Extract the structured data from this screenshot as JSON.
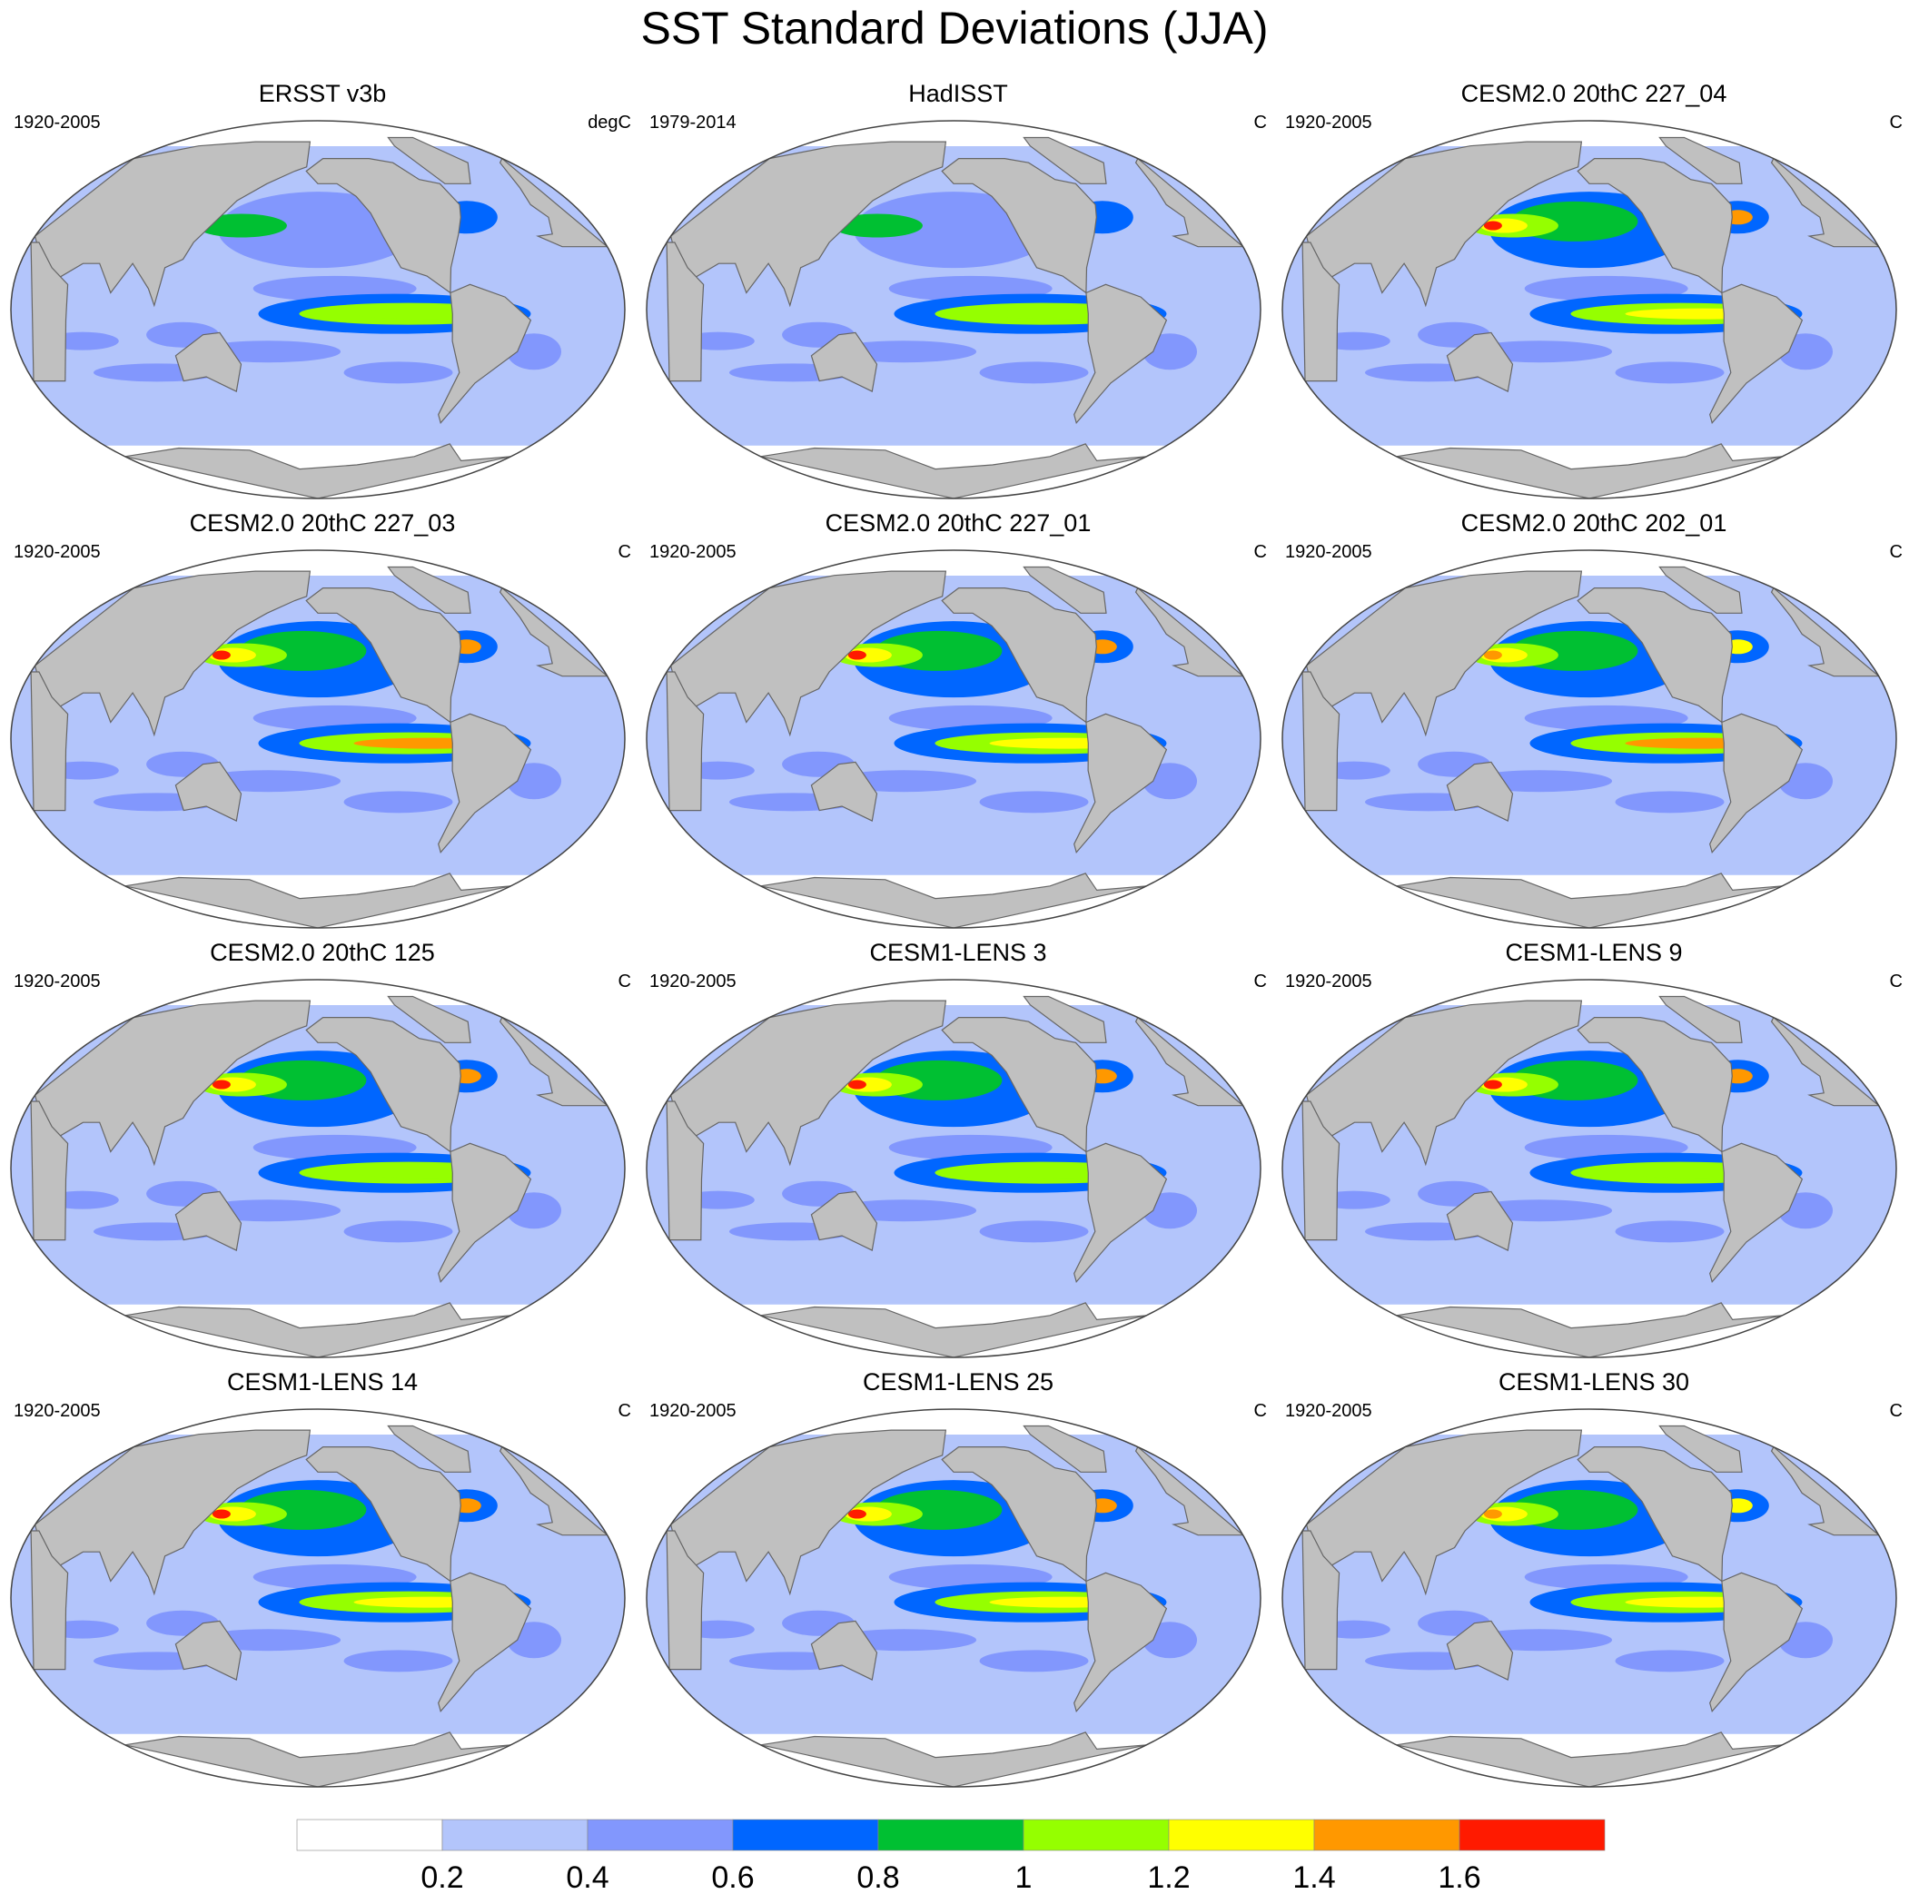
{
  "title": "SST Standard Deviations (JJA)",
  "panels": [
    {
      "title": "ERSST v3b",
      "period": "1920-2005",
      "unit": "degC",
      "enso_peak": 1.0,
      "kuroshio_peak": 0.9,
      "obs": true
    },
    {
      "title": "HadISST",
      "period": "1979-2014",
      "unit": "C",
      "enso_peak": 1.0,
      "kuroshio_peak": 0.8,
      "obs": true
    },
    {
      "title": "CESM2.0 20thC 227_04",
      "period": "1920-2005",
      "unit": "C",
      "enso_peak": 1.3,
      "kuroshio_peak": 1.6,
      "obs": false
    },
    {
      "title": "CESM2.0 20thC 227_03",
      "period": "1920-2005",
      "unit": "C",
      "enso_peak": 1.4,
      "kuroshio_peak": 1.6,
      "obs": false
    },
    {
      "title": "CESM2.0 20thC 227_01",
      "period": "1920-2005",
      "unit": "C",
      "enso_peak": 1.2,
      "kuroshio_peak": 1.6,
      "obs": false
    },
    {
      "title": "CESM2.0 20thC 202_01",
      "period": "1920-2005",
      "unit": "C",
      "enso_peak": 1.4,
      "kuroshio_peak": 1.4,
      "obs": false
    },
    {
      "title": "CESM2.0 20thC 125",
      "period": "1920-2005",
      "unit": "C",
      "enso_peak": 1.0,
      "kuroshio_peak": 1.6,
      "obs": false
    },
    {
      "title": "CESM1-LENS 3",
      "period": "1920-2005",
      "unit": "C",
      "enso_peak": 1.1,
      "kuroshio_peak": 1.6,
      "obs": false
    },
    {
      "title": "CESM1-LENS 9",
      "period": "1920-2005",
      "unit": "C",
      "enso_peak": 1.1,
      "kuroshio_peak": 1.6,
      "obs": false
    },
    {
      "title": "CESM1-LENS 14",
      "period": "1920-2005",
      "unit": "C",
      "enso_peak": 1.3,
      "kuroshio_peak": 1.6,
      "obs": false
    },
    {
      "title": "CESM1-LENS 25",
      "period": "1920-2005",
      "unit": "C",
      "enso_peak": 1.3,
      "kuroshio_peak": 1.6,
      "obs": false
    },
    {
      "title": "CESM1-LENS 30",
      "period": "1920-2005",
      "unit": "C",
      "enso_peak": 1.3,
      "kuroshio_peak": 1.5,
      "obs": false
    }
  ],
  "colorbar": {
    "levels": [
      "0.2",
      "0.4",
      "0.6",
      "0.8",
      "1",
      "1.2",
      "1.4",
      "1.6"
    ],
    "colors": [
      "#ffffff",
      "#b3c5fb",
      "#8297fd",
      "#0066ff",
      "#00c032",
      "#95ff00",
      "#ffff00",
      "#ff9800",
      "#ff1a00"
    ]
  },
  "land_color": "#c0c0c0"
}
